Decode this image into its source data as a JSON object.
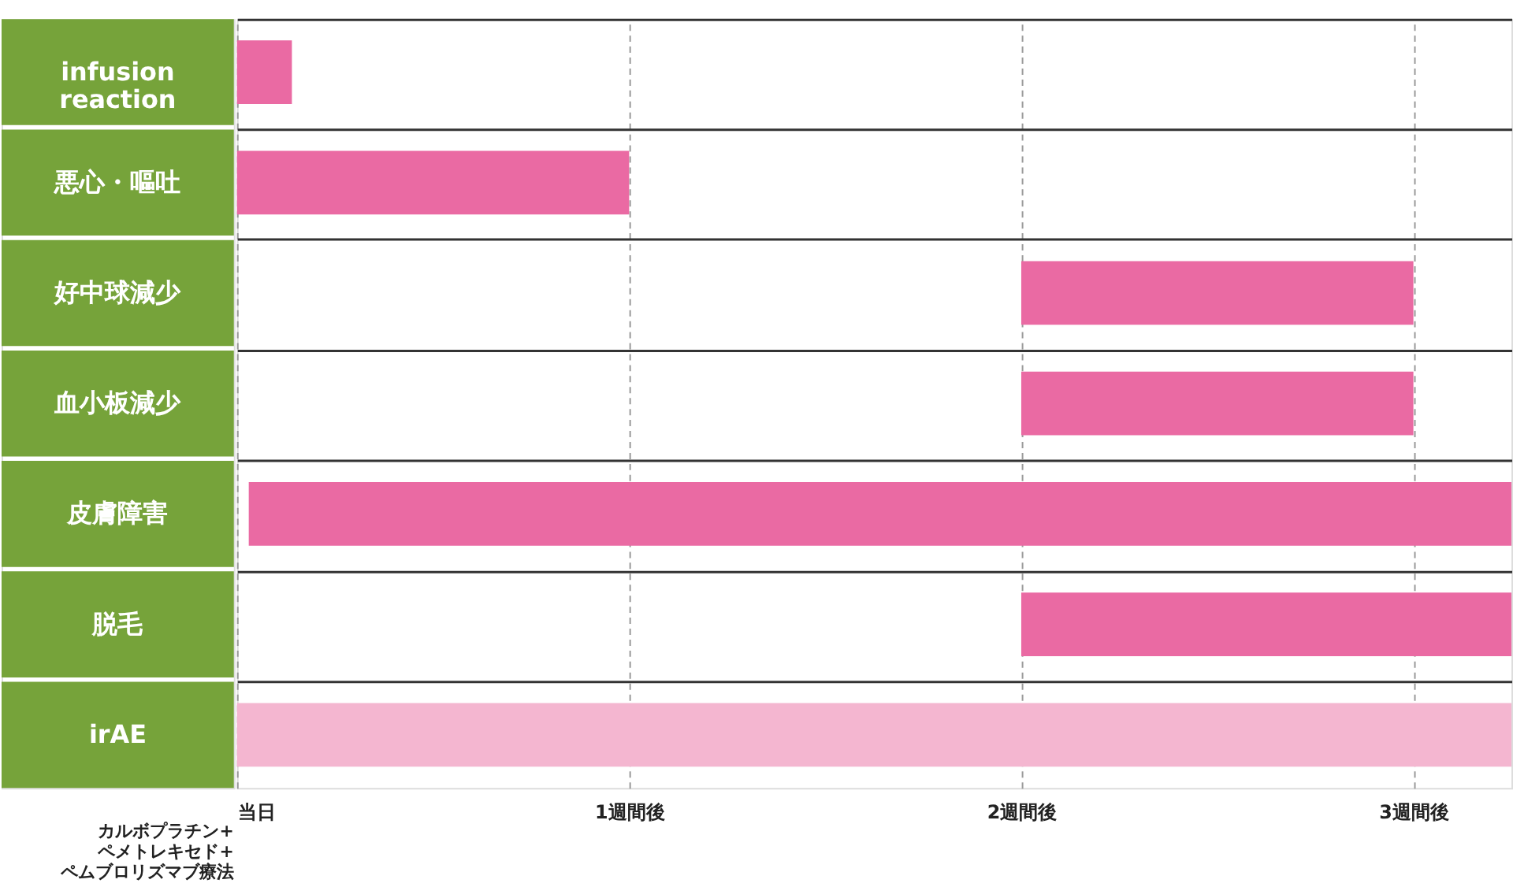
{
  "chart_data": {
    "type": "bar",
    "orientation": "horizontal",
    "categories": [
      "infusion reaction",
      "悪心・嘔吐",
      "好中球減少",
      "血小板減少",
      "皮膚障害",
      "脱毛",
      "irAE"
    ],
    "base": [
      0,
      0,
      2,
      2,
      0.03,
      2,
      0
    ],
    "values": [
      0.14,
      1,
      1,
      1,
      3.22,
      1.25,
      3.25
    ],
    "colors": [
      "#ea6aa3",
      "#ea6aa3",
      "#ea6aa3",
      "#ea6aa3",
      "#ea6aa3",
      "#ea6aa3",
      "#f4b6d0"
    ],
    "xlim": [
      0,
      3.25
    ],
    "xticks": [
      {
        "value": 0,
        "label": "当日"
      },
      {
        "value": 1,
        "label": "1週間後"
      },
      {
        "value": 2,
        "label": "2週間後"
      },
      {
        "value": 3,
        "label": "3週間後"
      }
    ],
    "grid": "x",
    "annotations": [
      "カルボプラチン+ ペメトレキセド+ ペムブロリズマブ療法"
    ]
  }
}
